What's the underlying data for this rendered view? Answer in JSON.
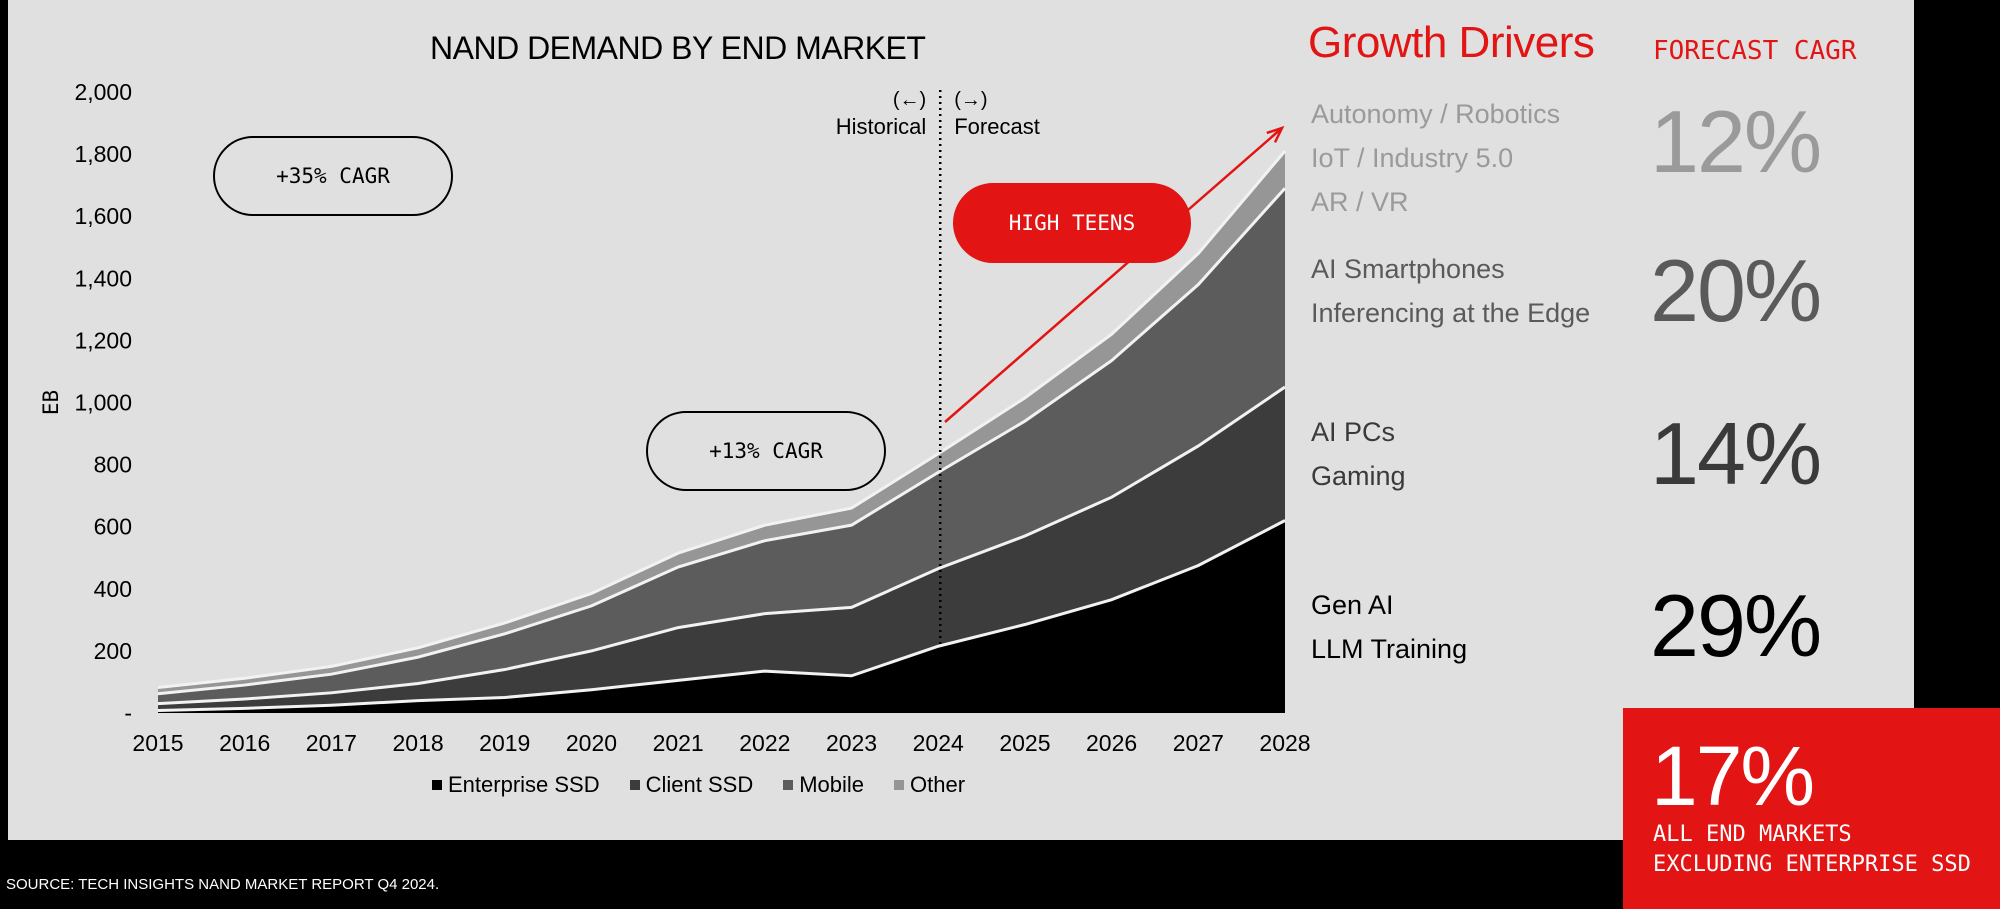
{
  "chart_data": {
    "type": "area",
    "stacked": true,
    "title": "NAND DEMAND BY END MARKET",
    "ylabel": "EB",
    "xlabel": "",
    "x": [
      "2015",
      "2016",
      "2017",
      "2018",
      "2019",
      "2020",
      "2021",
      "2022",
      "2023",
      "2024",
      "2025",
      "2026",
      "2027",
      "2028"
    ],
    "ylim": [
      0,
      2000
    ],
    "yticks": [
      "-",
      "200",
      "400",
      "600",
      "800",
      "1,000",
      "1,200",
      "1,400",
      "1,600",
      "1,800",
      "2,000"
    ],
    "series": [
      {
        "name": "Enterprise SSD",
        "color": "#000000",
        "values": [
          8,
          15,
          25,
          40,
          50,
          75,
          105,
          135,
          120,
          215,
          285,
          365,
          475,
          620
        ]
      },
      {
        "name": "Client SSD",
        "color": "#3c3c3c",
        "values": [
          22,
          30,
          40,
          55,
          90,
          125,
          170,
          185,
          220,
          250,
          285,
          330,
          385,
          430
        ]
      },
      {
        "name": "Mobile",
        "color": "#5c5c5c",
        "values": [
          32,
          45,
          60,
          85,
          115,
          145,
          195,
          235,
          265,
          310,
          370,
          440,
          520,
          640
        ]
      },
      {
        "name": "Other",
        "color": "#969696",
        "values": [
          20,
          22,
          25,
          30,
          35,
          40,
          45,
          50,
          55,
          60,
          75,
          85,
          100,
          120
        ]
      }
    ],
    "annotations": {
      "historical": {
        "arrow": "(←)",
        "label": "Historical"
      },
      "forecast": {
        "arrow": "(→)",
        "label": "Forecast"
      },
      "divider_year": "2024",
      "cagr_2015": "+35% CAGR",
      "cagr_2021": "+13% CAGR",
      "forecast_tag": "HIGH TEENS"
    },
    "legend_position": "bottom"
  },
  "growth_drivers": {
    "title": "Growth Drivers",
    "subtitle": "FORECAST CAGR",
    "groups": [
      {
        "items": [
          "Autonomy / Robotics",
          "IoT / Industry 5.0",
          "AR / VR"
        ],
        "cagr": "12%",
        "color": "#9a9a9a"
      },
      {
        "items": [
          "AI Smartphones",
          "Inferencing at the Edge"
        ],
        "cagr": "20%",
        "color": "#5a5a5a"
      },
      {
        "items": [
          "AI PCs",
          "Gaming"
        ],
        "cagr": "14%",
        "color": "#3a3a3a"
      },
      {
        "items": [
          "Gen AI",
          "LLM Training"
        ],
        "cagr": "29%",
        "color": "#000000"
      }
    ]
  },
  "summary": {
    "pct": "17%",
    "line1": "ALL END MARKETS",
    "line2": "EXCLUDING ENTERPRISE SSD"
  },
  "source": "SOURCE: TECH INSIGHTS NAND MARKET REPORT Q4 2024.",
  "colors": {
    "accent": "#e21414",
    "background": "#e0e0e0"
  }
}
